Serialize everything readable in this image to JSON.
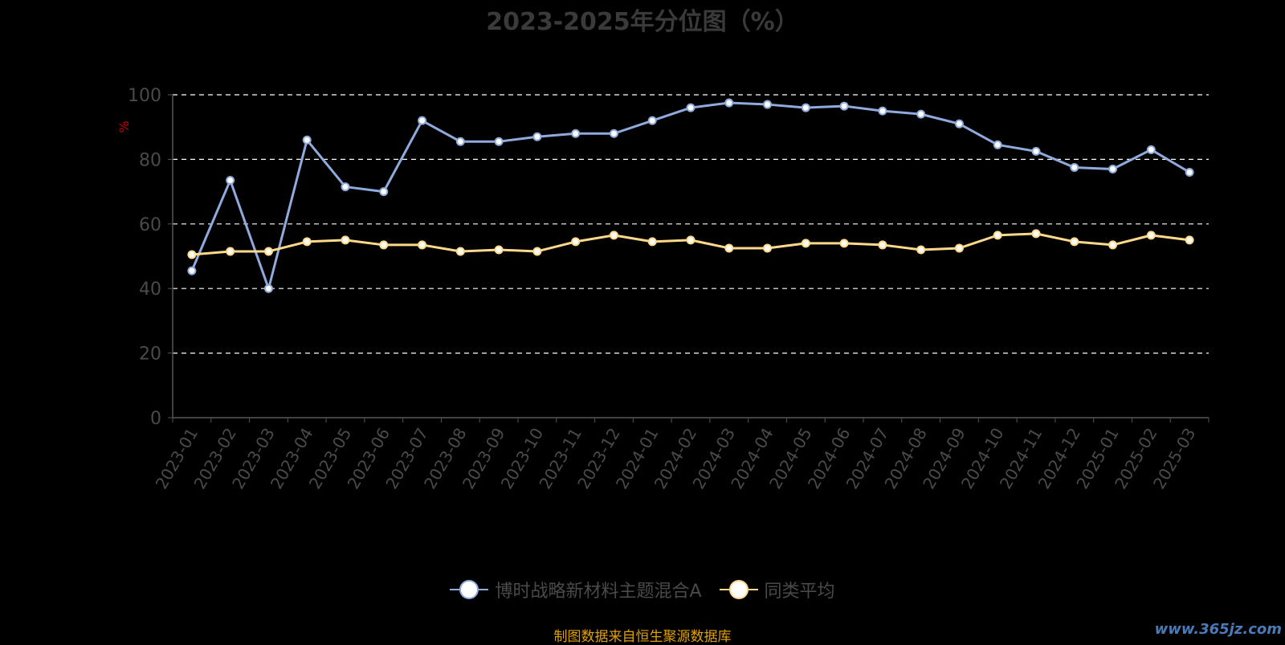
{
  "chart_data": {
    "type": "line",
    "title": "2023-2025年分位图（%）",
    "ylabel": "%",
    "ylim": [
      0,
      100
    ],
    "yticks": [
      0,
      20,
      40,
      60,
      80,
      100
    ],
    "grid": true,
    "legend_position": "bottom",
    "categories": [
      "2023-01",
      "2023-02",
      "2023-03",
      "2023-04",
      "2023-05",
      "2023-06",
      "2023-07",
      "2023-08",
      "2023-09",
      "2023-10",
      "2023-11",
      "2023-12",
      "2024-01",
      "2024-02",
      "2024-03",
      "2024-04",
      "2024-05",
      "2024-06",
      "2024-07",
      "2024-08",
      "2024-09",
      "2024-10",
      "2024-11",
      "2024-12",
      "2025-01",
      "2025-02",
      "2025-03"
    ],
    "series": [
      {
        "name": "博时战略新材料主题混合A",
        "color": "#8faadc",
        "values": [
          45.5,
          73.5,
          40.0,
          86.0,
          71.5,
          70.0,
          92.0,
          85.5,
          85.5,
          87.0,
          88.0,
          88.0,
          92.0,
          96.0,
          97.5,
          97.0,
          96.0,
          96.5,
          95.0,
          94.0,
          91.0,
          84.5,
          82.5,
          77.5,
          77.0,
          83.0,
          76.0
        ]
      },
      {
        "name": "同类平均",
        "color": "#ffd98a",
        "values": [
          50.5,
          51.5,
          51.5,
          54.5,
          55.0,
          53.5,
          53.5,
          51.5,
          52.0,
          51.5,
          54.5,
          56.5,
          54.5,
          55.0,
          52.5,
          52.5,
          54.0,
          54.0,
          53.5,
          52.0,
          52.5,
          56.5,
          57.0,
          54.5,
          53.5,
          56.5,
          55.0
        ]
      }
    ]
  },
  "footer": {
    "source": "制图数据来自恒生聚源数据库",
    "watermark": "www.365jz.com"
  }
}
